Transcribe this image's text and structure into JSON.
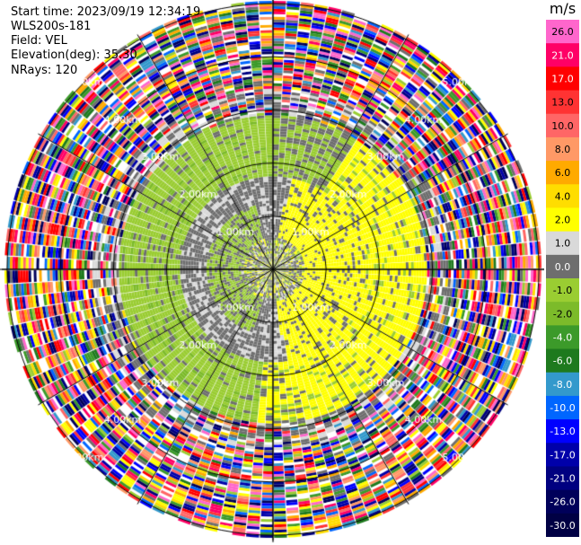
{
  "header": {
    "start_time": "Start time: 2023/09/19 12:34:19",
    "instrument": "WLS200s-181",
    "field": "Field: VEL",
    "elevation": "Elevation(deg): 35.30",
    "nrays": "NRays: 120"
  },
  "chart_data": {
    "type": "heatmap",
    "projection": "polar-ppi",
    "nrays": 120,
    "range_rings": [
      "1.00km",
      "2.00km",
      "3.00km",
      "4.00km",
      "5.00km"
    ],
    "range_ring_km": [
      1,
      2,
      3,
      4,
      5
    ],
    "max_range_km": 5.1,
    "colorbar": {
      "unit": "m/s",
      "ticks": [
        "26.0",
        "21.0",
        "17.0",
        "13.0",
        "10.0",
        "8.0",
        "6.0",
        "4.0",
        "2.0",
        "1.0",
        "0.0",
        "-1.0",
        "-2.0",
        "-4.0",
        "-6.0",
        "-8.0",
        "-10.0",
        "-13.0",
        "-17.0",
        "-21.0",
        "-26.0",
        "-30.0"
      ],
      "colors": [
        "#ff66cc",
        "#ff0066",
        "#ff0000",
        "#ff3333",
        "#ff6666",
        "#ff9966",
        "#ffaa00",
        "#ffdd00",
        "#ffff00",
        "#d9d9d9",
        "#6e6e6e",
        "#9acd32",
        "#7cbb2a",
        "#3c9a2a",
        "#1e7a1e",
        "#3399cc",
        "#0066ff",
        "#0000ff",
        "#0000aa",
        "#000080",
        "#00005a",
        "#000044"
      ]
    },
    "pattern": {
      "inner_km": [
        0,
        0.6
      ],
      "inner_field": "mixed",
      "ring1_km": [
        0.6,
        1.25
      ],
      "ring1_field": "yellow-east-green-west",
      "ring2_km": [
        1.25,
        2.9
      ],
      "ring2_field": "green-west-yellow-east",
      "outer_km": [
        2.9,
        5.1
      ],
      "outer_field": "noise"
    }
  }
}
